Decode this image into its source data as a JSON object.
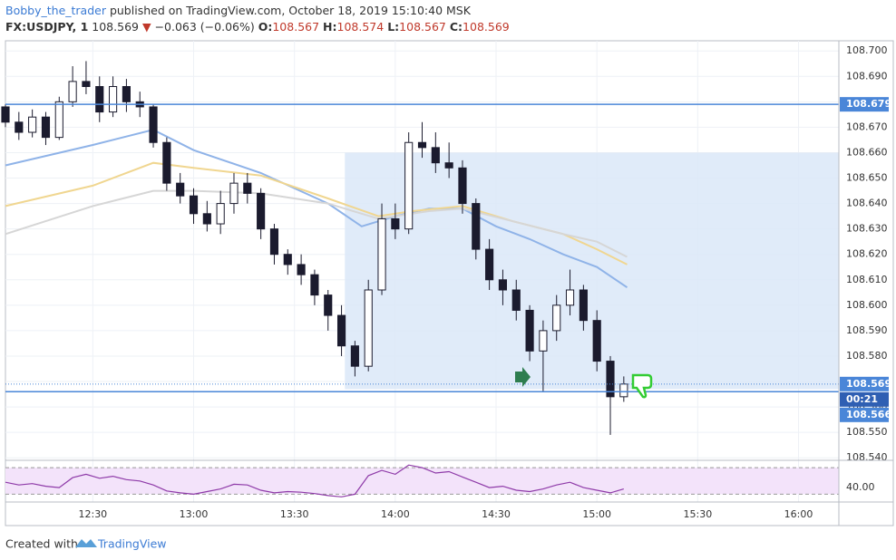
{
  "header": {
    "author": "Bobby_the_trader",
    "published": "published on TradingView.com, October 18, 2019 15:10:40 MSK",
    "symbol": "FX:USDJPY, 1",
    "last": "108.569",
    "arrow": "▼",
    "change": "−0.063 (−0.06%)",
    "o_label": "O:",
    "o": "108.567",
    "h_label": "H:",
    "h": "108.574",
    "l_label": "L:",
    "l": "108.567",
    "c_label": "C:",
    "c": "108.569"
  },
  "chart_data": [
    {
      "type": "candlestick",
      "x": [
        "12:04",
        "12:08",
        "12:12",
        "12:16",
        "12:20",
        "12:24",
        "12:28",
        "12:32",
        "12:36",
        "12:40",
        "12:44",
        "12:48",
        "12:52",
        "12:56",
        "13:00",
        "13:04",
        "13:08",
        "13:12",
        "13:16",
        "13:20",
        "13:24",
        "13:28",
        "13:32",
        "13:36",
        "13:40",
        "13:44",
        "13:48",
        "13:52",
        "13:56",
        "14:00",
        "14:04",
        "14:08",
        "14:12",
        "14:16",
        "14:20",
        "14:24",
        "14:28",
        "14:32",
        "14:36",
        "14:40",
        "14:44",
        "14:48",
        "14:52",
        "14:56",
        "15:00",
        "15:04",
        "15:08"
      ],
      "candles": [
        [
          108.678,
          108.679,
          108.67,
          108.672
        ],
        [
          108.672,
          108.676,
          108.665,
          108.668
        ],
        [
          108.668,
          108.677,
          108.666,
          108.674
        ],
        [
          108.674,
          108.676,
          108.663,
          108.666
        ],
        [
          108.666,
          108.682,
          108.665,
          108.68
        ],
        [
          108.68,
          108.694,
          108.678,
          108.688
        ],
        [
          108.688,
          108.696,
          108.683,
          108.686
        ],
        [
          108.686,
          108.69,
          108.672,
          108.676
        ],
        [
          108.676,
          108.69,
          108.674,
          108.686
        ],
        [
          108.686,
          108.689,
          108.676,
          108.68
        ],
        [
          108.68,
          108.684,
          108.674,
          108.678
        ],
        [
          108.678,
          108.679,
          108.662,
          108.664
        ],
        [
          108.664,
          108.666,
          108.645,
          108.648
        ],
        [
          108.648,
          108.652,
          108.64,
          108.643
        ],
        [
          108.643,
          108.646,
          108.632,
          108.636
        ],
        [
          108.636,
          108.641,
          108.629,
          108.632
        ],
        [
          108.632,
          108.645,
          108.628,
          108.64
        ],
        [
          108.64,
          108.652,
          108.636,
          108.648
        ],
        [
          108.648,
          108.652,
          108.64,
          108.644
        ],
        [
          108.644,
          108.646,
          108.626,
          108.63
        ],
        [
          108.63,
          108.632,
          108.616,
          108.62
        ],
        [
          108.62,
          108.622,
          108.612,
          108.616
        ],
        [
          108.616,
          108.62,
          108.608,
          108.612
        ],
        [
          108.612,
          108.614,
          108.6,
          108.604
        ],
        [
          108.604,
          108.606,
          108.59,
          108.596
        ],
        [
          108.596,
          108.6,
          108.58,
          108.584
        ],
        [
          108.584,
          108.586,
          108.572,
          108.576
        ],
        [
          108.576,
          108.61,
          108.574,
          108.606
        ],
        [
          108.606,
          108.64,
          108.604,
          108.634
        ],
        [
          108.634,
          108.64,
          108.626,
          108.63
        ],
        [
          108.63,
          108.668,
          108.628,
          108.664
        ],
        [
          108.664,
          108.672,
          108.658,
          108.662
        ],
        [
          108.662,
          108.668,
          108.652,
          108.656
        ],
        [
          108.656,
          108.664,
          108.65,
          108.654
        ],
        [
          108.654,
          108.657,
          108.636,
          108.64
        ],
        [
          108.64,
          108.642,
          108.618,
          108.622
        ],
        [
          108.622,
          108.626,
          108.606,
          108.61
        ],
        [
          108.61,
          108.614,
          108.6,
          108.606
        ],
        [
          108.606,
          108.61,
          108.594,
          108.598
        ],
        [
          108.598,
          108.6,
          108.578,
          108.582
        ],
        [
          108.582,
          108.594,
          108.566,
          108.59
        ],
        [
          108.59,
          108.604,
          108.586,
          108.6
        ],
        [
          108.6,
          108.614,
          108.596,
          108.606
        ],
        [
          108.606,
          108.608,
          108.59,
          108.594
        ],
        [
          108.594,
          108.598,
          108.574,
          108.578
        ],
        [
          108.578,
          108.58,
          108.549,
          108.564
        ],
        [
          108.564,
          108.572,
          108.562,
          108.569
        ]
      ],
      "up_color": "#ffffff",
      "down_color": "#1b1b2e",
      "xlim": [
        "12:04",
        "16:12"
      ],
      "xticks": [
        "12:30",
        "13:00",
        "13:30",
        "14:00",
        "14:30",
        "15:00",
        "15:30",
        "16:00"
      ],
      "ylim": [
        108.539,
        108.704
      ],
      "yticks": [
        {
          "value": 108.7,
          "label": "108.700"
        },
        {
          "value": 108.69,
          "label": "108.690"
        },
        {
          "value": 108.68,
          "label": "108.680"
        },
        {
          "value": 108.67,
          "label": "108.670"
        },
        {
          "value": 108.66,
          "label": "108.660"
        },
        {
          "value": 108.65,
          "label": "108.650"
        },
        {
          "value": 108.64,
          "label": "108.640"
        },
        {
          "value": 108.63,
          "label": "108.630"
        },
        {
          "value": 108.62,
          "label": "108.620"
        },
        {
          "value": 108.61,
          "label": "108.610"
        },
        {
          "value": 108.6,
          "label": "108.600"
        },
        {
          "value": 108.59,
          "label": "108.590"
        },
        {
          "value": 108.58,
          "label": "108.580"
        },
        {
          "value": 108.57,
          "label": "108.570"
        },
        {
          "value": 108.56,
          "label": "108.560"
        },
        {
          "value": 108.55,
          "label": "108.550"
        },
        {
          "value": 108.54,
          "label": "108.540"
        }
      ],
      "grid": true,
      "series": [
        {
          "color": "#8fb3e8",
          "x": [
            "12:04",
            "12:30",
            "12:48",
            "13:00",
            "13:20",
            "13:40",
            "13:50",
            "14:00",
            "14:10",
            "14:20",
            "14:30",
            "14:40",
            "14:50",
            "15:00",
            "15:09"
          ],
          "values": [
            108.655,
            108.663,
            108.669,
            108.661,
            108.652,
            108.64,
            108.631,
            108.635,
            108.638,
            108.638,
            108.631,
            108.626,
            108.62,
            108.615,
            108.607
          ]
        },
        {
          "color": "#f0d690",
          "x": [
            "12:04",
            "12:30",
            "12:48",
            "13:00",
            "13:20",
            "13:40",
            "13:55",
            "14:05",
            "14:20",
            "14:35",
            "14:50",
            "15:00",
            "15:09"
          ],
          "values": [
            108.639,
            108.647,
            108.656,
            108.654,
            108.651,
            108.642,
            108.635,
            108.637,
            108.639,
            108.633,
            108.628,
            108.622,
            108.616
          ]
        },
        {
          "color": "#d6d6d6",
          "x": [
            "12:04",
            "12:30",
            "12:48",
            "13:00",
            "13:20",
            "13:40",
            "13:55",
            "14:10",
            "14:20",
            "14:35",
            "14:50",
            "15:00",
            "15:09"
          ],
          "values": [
            108.628,
            108.639,
            108.645,
            108.645,
            108.644,
            108.64,
            108.634,
            108.637,
            108.638,
            108.633,
            108.628,
            108.625,
            108.619
          ]
        }
      ],
      "box": {
        "x": [
          "13:45",
          "16:12"
        ],
        "y": [
          108.567,
          108.66
        ],
        "color": "#dbe7f8"
      },
      "levels": [
        {
          "value": 108.679,
          "label": "108.679"
        },
        {
          "value": 108.566,
          "label": "108.566"
        }
      ],
      "level_color": "#4a86d8",
      "last_price": {
        "value": 108.569,
        "label": "108.569"
      },
      "countdown": "00:21"
    },
    {
      "type": "line",
      "x": [
        "12:04",
        "12:08",
        "12:12",
        "12:16",
        "12:20",
        "12:24",
        "12:28",
        "12:32",
        "12:36",
        "12:40",
        "12:44",
        "12:48",
        "12:52",
        "12:56",
        "13:00",
        "13:04",
        "13:08",
        "13:12",
        "13:16",
        "13:20",
        "13:24",
        "13:28",
        "13:32",
        "13:36",
        "13:40",
        "13:44",
        "13:48",
        "13:52",
        "13:56",
        "14:00",
        "14:04",
        "14:08",
        "14:12",
        "14:16",
        "14:20",
        "14:24",
        "14:28",
        "14:32",
        "14:36",
        "14:40",
        "14:44",
        "14:48",
        "14:52",
        "14:56",
        "15:00",
        "15:04",
        "15:08"
      ],
      "values": [
        48,
        44,
        46,
        42,
        40,
        55,
        60,
        54,
        57,
        52,
        50,
        44,
        35,
        32,
        30,
        34,
        38,
        45,
        44,
        36,
        32,
        34,
        33,
        31,
        28,
        26,
        30,
        58,
        66,
        60,
        74,
        70,
        62,
        64,
        56,
        48,
        40,
        42,
        36,
        34,
        38,
        44,
        48,
        40,
        36,
        32,
        38
      ],
      "color": "#8e3aa8",
      "band": [
        30,
        70
      ],
      "band_color": "#f3e3fa",
      "ylim": [
        21,
        77
      ],
      "yticks": [
        {
          "value": 40,
          "label": "40.00"
        }
      ]
    }
  ],
  "footer": {
    "created": "Created with",
    "brand": "TradingView"
  }
}
